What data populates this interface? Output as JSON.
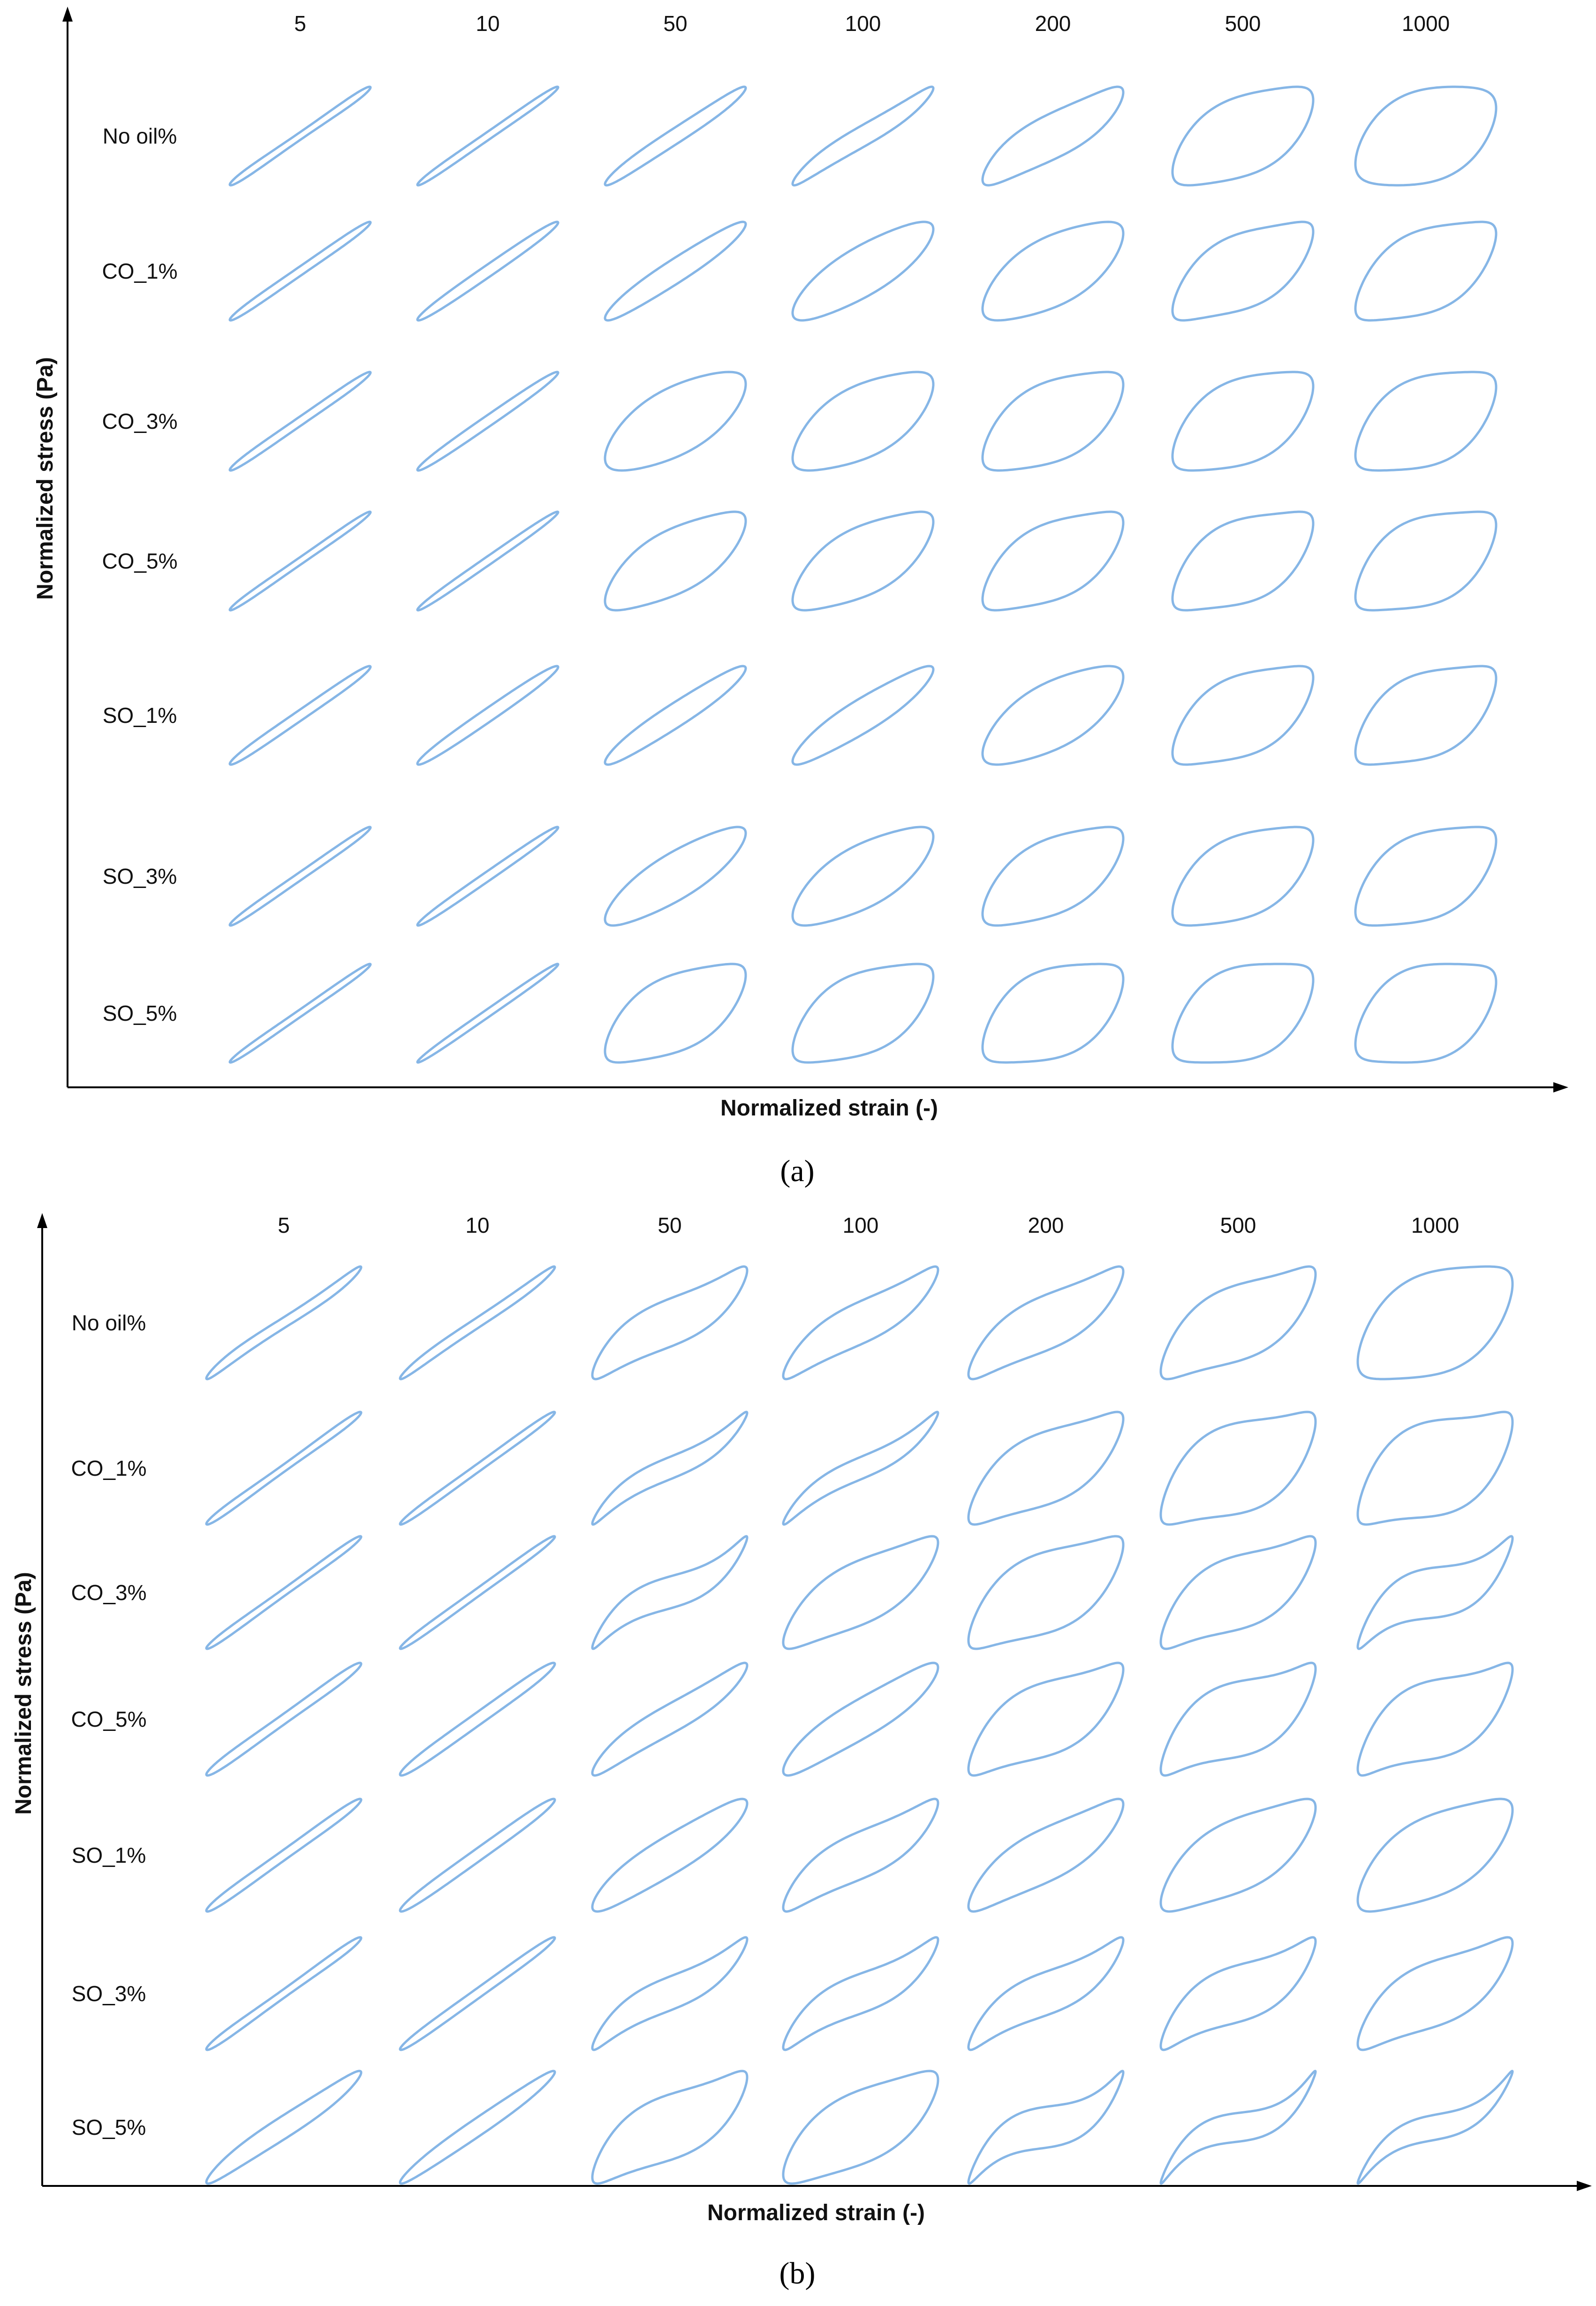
{
  "chart_data": [
    {
      "type": "lissajous-grid",
      "panel": "(a)",
      "xlabel": "Normalized strain (-)",
      "ylabel": "Normalized stress (Pa)",
      "columns": [
        "5",
        "10",
        "50",
        "100",
        "200",
        "500",
        "1000"
      ],
      "rows": [
        {
          "label": "No oil%",
          "loops": [
            {
              "a": 0.08,
              "k": 0.0,
              "sk": -0.09
            },
            {
              "a": 0.09,
              "k": 0.0,
              "sk": -0.06
            },
            {
              "a": 0.18,
              "k": 0.05,
              "sk": -0.06
            },
            {
              "a": 0.23,
              "k": 0.16,
              "sk": -0.06
            },
            {
              "a": 0.48,
              "k": 0.22,
              "sk": -0.08
            },
            {
              "a": 0.75,
              "k": 0.3,
              "sk": -0.04
            },
            {
              "a": 0.86,
              "k": 0.28,
              "sk": -0.02
            }
          ]
        },
        {
          "label": "CO_1%",
          "loops": [
            {
              "a": 0.1,
              "k": 0.0,
              "sk": -0.06
            },
            {
              "a": 0.14,
              "k": 0.0,
              "sk": -0.04
            },
            {
              "a": 0.28,
              "k": 0.05,
              "sk": -0.04
            },
            {
              "a": 0.55,
              "k": 0.1,
              "sk": -0.02
            },
            {
              "a": 0.7,
              "k": 0.2,
              "sk": 0.0
            },
            {
              "a": 0.7,
              "k": 0.35,
              "sk": 0.0
            },
            {
              "a": 0.75,
              "k": 0.35,
              "sk": 0.02
            }
          ]
        },
        {
          "label": "CO_3%",
          "loops": [
            {
              "a": 0.1,
              "k": 0.0,
              "sk": -0.06
            },
            {
              "a": 0.13,
              "k": 0.0,
              "sk": -0.04
            },
            {
              "a": 0.7,
              "k": 0.15,
              "sk": 0.0
            },
            {
              "a": 0.72,
              "k": 0.22,
              "sk": 0.0
            },
            {
              "a": 0.75,
              "k": 0.3,
              "sk": 0.0
            },
            {
              "a": 0.78,
              "k": 0.32,
              "sk": 0.0
            },
            {
              "a": 0.8,
              "k": 0.35,
              "sk": 0.0
            }
          ]
        },
        {
          "label": "CO_5%",
          "loops": [
            {
              "a": 0.08,
              "k": 0.0,
              "sk": -0.06
            },
            {
              "a": 0.1,
              "k": 0.0,
              "sk": -0.04
            },
            {
              "a": 0.65,
              "k": 0.22,
              "sk": 0.0
            },
            {
              "a": 0.68,
              "k": 0.25,
              "sk": 0.0
            },
            {
              "a": 0.72,
              "k": 0.32,
              "sk": 0.0
            },
            {
              "a": 0.75,
              "k": 0.38,
              "sk": 0.0
            },
            {
              "a": 0.78,
              "k": 0.38,
              "sk": 0.0
            }
          ]
        },
        {
          "label": "SO_1%",
          "loops": [
            {
              "a": 0.12,
              "k": 0.0,
              "sk": -0.06
            },
            {
              "a": 0.16,
              "k": 0.0,
              "sk": -0.04
            },
            {
              "a": 0.28,
              "k": 0.05,
              "sk": -0.04
            },
            {
              "a": 0.38,
              "k": 0.1,
              "sk": -0.02
            },
            {
              "a": 0.68,
              "k": 0.18,
              "sk": 0.0
            },
            {
              "a": 0.74,
              "k": 0.35,
              "sk": 0.0
            },
            {
              "a": 0.76,
              "k": 0.38,
              "sk": 0.0
            }
          ]
        },
        {
          "label": "SO_3%",
          "loops": [
            {
              "a": 0.09,
              "k": 0.0,
              "sk": -0.06
            },
            {
              "a": 0.11,
              "k": 0.0,
              "sk": -0.04
            },
            {
              "a": 0.52,
              "k": 0.1,
              "sk": 0.0
            },
            {
              "a": 0.65,
              "k": 0.18,
              "sk": 0.0
            },
            {
              "a": 0.72,
              "k": 0.28,
              "sk": 0.0
            },
            {
              "a": 0.76,
              "k": 0.32,
              "sk": 0.0
            },
            {
              "a": 0.78,
              "k": 0.35,
              "sk": 0.0
            }
          ]
        },
        {
          "label": "SO_5%",
          "loops": [
            {
              "a": 0.08,
              "k": 0.0,
              "sk": -0.06
            },
            {
              "a": 0.09,
              "k": 0.0,
              "sk": -0.04
            },
            {
              "a": 0.72,
              "k": 0.3,
              "sk": 0.0
            },
            {
              "a": 0.75,
              "k": 0.32,
              "sk": 0.0
            },
            {
              "a": 0.8,
              "k": 0.35,
              "sk": 0.0
            },
            {
              "a": 0.82,
              "k": 0.38,
              "sk": 0.0
            },
            {
              "a": 0.84,
              "k": 0.38,
              "sk": 0.0
            }
          ]
        }
      ]
    },
    {
      "type": "lissajous-grid",
      "panel": "(b)",
      "xlabel": "Normalized strain (-)",
      "ylabel": "Normalized stress (Pa)",
      "columns": [
        "5",
        "10",
        "50",
        "100",
        "200",
        "500",
        "1000"
      ],
      "rows": [
        {
          "label": "No oil%",
          "loops": [
            {
              "a": 0.1,
              "k": 0.12,
              "sk": -0.09
            },
            {
              "a": 0.1,
              "k": 0.08,
              "sk": -0.07
            },
            {
              "a": 0.42,
              "k": 0.38,
              "sk": -0.07
            },
            {
              "a": 0.38,
              "k": 0.32,
              "sk": -0.05
            },
            {
              "a": 0.48,
              "k": 0.35,
              "sk": -0.04
            },
            {
              "a": 0.62,
              "k": 0.42,
              "sk": -0.02
            },
            {
              "a": 0.8,
              "k": 0.35,
              "sk": -0.01
            }
          ]
        },
        {
          "label": "CO_1%",
          "loops": [
            {
              "a": 0.07,
              "k": 0.0,
              "sk": -0.09
            },
            {
              "a": 0.08,
              "k": 0.0,
              "sk": -0.06
            },
            {
              "a": 0.2,
              "k": 0.42,
              "sk": -0.06
            },
            {
              "a": 0.2,
              "k": 0.4,
              "sk": -0.06
            },
            {
              "a": 0.6,
              "k": 0.4,
              "sk": 0.0
            },
            {
              "a": 0.7,
              "k": 0.48,
              "sk": 0.0
            },
            {
              "a": 0.72,
              "k": 0.52,
              "sk": 0.0
            }
          ]
        },
        {
          "label": "CO_3%",
          "loops": [
            {
              "a": 0.07,
              "k": 0.0,
              "sk": -0.08
            },
            {
              "a": 0.08,
              "k": 0.0,
              "sk": -0.06
            },
            {
              "a": 0.28,
              "k": 0.58,
              "sk": -0.03
            },
            {
              "a": 0.55,
              "k": 0.32,
              "sk": -0.01
            },
            {
              "a": 0.65,
              "k": 0.42,
              "sk": 0.0
            },
            {
              "a": 0.6,
              "k": 0.48,
              "sk": -0.02
            },
            {
              "a": 0.42,
              "k": 0.75,
              "sk": 0.0
            }
          ]
        },
        {
          "label": "CO_5%",
          "loops": [
            {
              "a": 0.1,
              "k": 0.0,
              "sk": -0.09
            },
            {
              "a": 0.13,
              "k": 0.0,
              "sk": -0.07
            },
            {
              "a": 0.28,
              "k": 0.2,
              "sk": -0.08
            },
            {
              "a": 0.38,
              "k": 0.15,
              "sk": -0.08
            },
            {
              "a": 0.6,
              "k": 0.45,
              "sk": 0.0
            },
            {
              "a": 0.6,
              "k": 0.55,
              "sk": 0.0
            },
            {
              "a": 0.62,
              "k": 0.55,
              "sk": 0.0
            }
          ]
        },
        {
          "label": "SO_1%",
          "loops": [
            {
              "a": 0.1,
              "k": 0.0,
              "sk": -0.08
            },
            {
              "a": 0.13,
              "k": 0.0,
              "sk": -0.06
            },
            {
              "a": 0.38,
              "k": 0.12,
              "sk": -0.07
            },
            {
              "a": 0.42,
              "k": 0.35,
              "sk": -0.06
            },
            {
              "a": 0.48,
              "k": 0.28,
              "sk": -0.04
            },
            {
              "a": 0.62,
              "k": 0.32,
              "sk": -0.02
            },
            {
              "a": 0.68,
              "k": 0.3,
              "sk": -0.02
            }
          ]
        },
        {
          "label": "SO_3%",
          "loops": [
            {
              "a": 0.08,
              "k": 0.0,
              "sk": -0.09
            },
            {
              "a": 0.1,
              "k": 0.0,
              "sk": -0.06
            },
            {
              "a": 0.3,
              "k": 0.42,
              "sk": -0.06
            },
            {
              "a": 0.35,
              "k": 0.45,
              "sk": -0.06
            },
            {
              "a": 0.38,
              "k": 0.45,
              "sk": -0.05
            },
            {
              "a": 0.48,
              "k": 0.52,
              "sk": -0.03
            },
            {
              "a": 0.55,
              "k": 0.42,
              "sk": -0.03
            }
          ]
        },
        {
          "label": "SO_5%",
          "loops": [
            {
              "a": 0.22,
              "k": 0.1,
              "sk": -0.04
            },
            {
              "a": 0.18,
              "k": 0.05,
              "sk": -0.03
            },
            {
              "a": 0.55,
              "k": 0.42,
              "sk": -0.04
            },
            {
              "a": 0.62,
              "k": 0.32,
              "sk": -0.03
            },
            {
              "a": 0.35,
              "k": 0.75,
              "sk": 0.0
            },
            {
              "a": 0.25,
              "k": 0.8,
              "sk": 0.0
            },
            {
              "a": 0.22,
              "k": 0.72,
              "sk": 0.0
            }
          ]
        }
      ]
    }
  ],
  "colors": {
    "loop_stroke": "#86b6e6",
    "axis": "#000000",
    "text": "#111111"
  }
}
